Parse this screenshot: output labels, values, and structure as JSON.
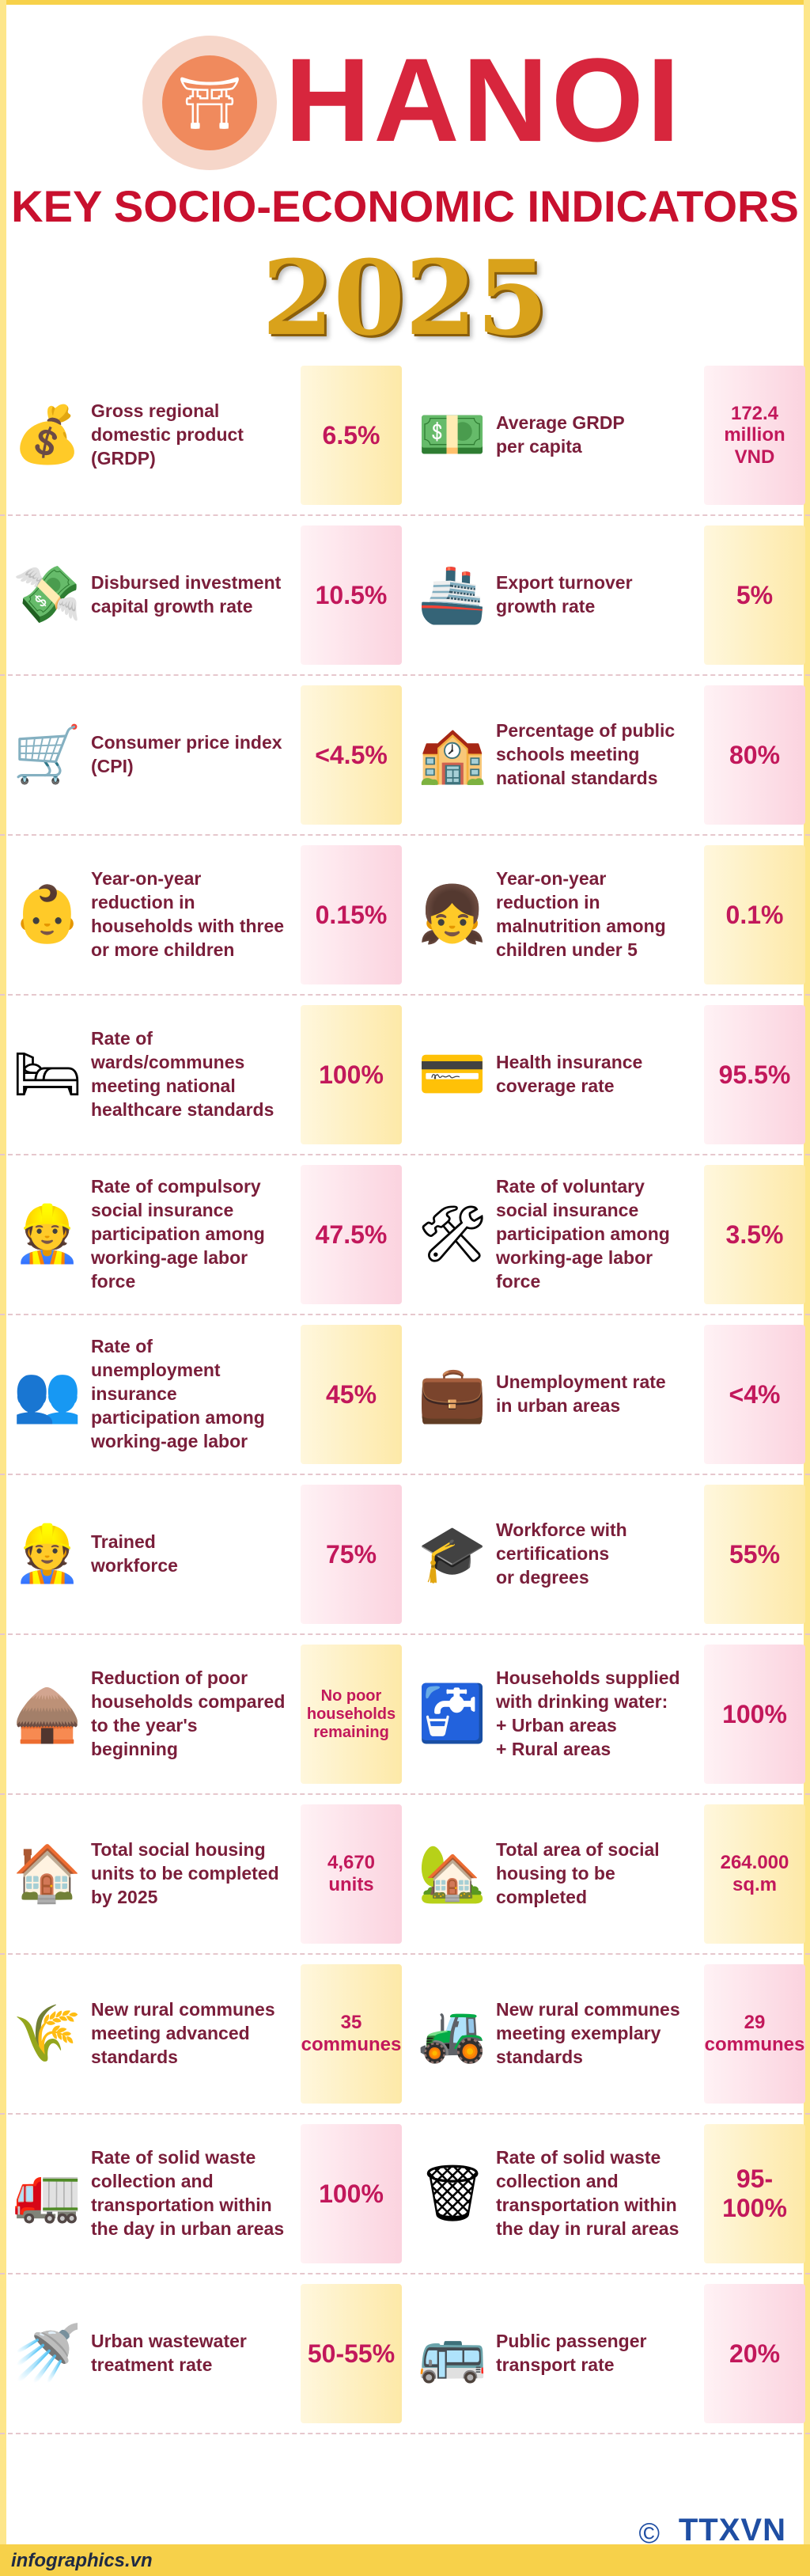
{
  "header": {
    "city": "HANOI",
    "subtitle": "KEY SOCIO-ECONOMIC INDICATORS",
    "year": "2025"
  },
  "rows": [
    {
      "left": {
        "label": "Gross regional\ndomestic product\n(GRDP)",
        "value": "6.5%",
        "icon": "coins-icon"
      },
      "right": {
        "label": "Average GRDP\nper capita",
        "value": "172.4\nmillion\nVND",
        "icon": "money-person-icon"
      }
    },
    {
      "left": {
        "label": "Disbursed investment\ncapital growth rate",
        "value": "10.5%",
        "icon": "cash-stack-icon"
      },
      "right": {
        "label": "Export turnover\ngrowth rate",
        "value": "5%",
        "icon": "container-port-icon"
      }
    },
    {
      "left": {
        "label": "Consumer price index\n(CPI)",
        "value": "<4.5%",
        "icon": "shopping-cart-icon"
      },
      "right": {
        "label": "Percentage of public\nschools meeting\nnational standards",
        "value": "80%",
        "icon": "school-icon"
      }
    },
    {
      "left": {
        "label": "Year-on-year\nreduction in\nhouseholds with three\nor more children",
        "value": "0.15%",
        "icon": "baby-icon"
      },
      "right": {
        "label": "Year-on-year\nreduction in\nmalnutrition among\nchildren under 5",
        "value": "0.1%",
        "icon": "child-icon"
      }
    },
    {
      "left": {
        "label": "Rate of\nwards/communes\nmeeting national\nhealthcare standards",
        "value": "100%",
        "icon": "hospital-bed-icon"
      },
      "right": {
        "label": "Health insurance\ncoverage rate",
        "value": "95.5%",
        "icon": "health-insurance-card-icon"
      }
    },
    {
      "left": {
        "label": "Rate of compulsory\nsocial insurance\nparticipation among\nworking-age labor\nforce",
        "value": "47.5%",
        "icon": "worker-icon"
      },
      "right": {
        "label": "Rate of voluntary\nsocial insurance\nparticipation among\nworking-age labor\nforce",
        "value": "3.5%",
        "icon": "wheelbarrow-worker-icon"
      }
    },
    {
      "left": {
        "label": "Rate of\nunemployment\ninsurance\nparticipation among\nworking-age labor",
        "value": "45%",
        "icon": "meeting-icon"
      },
      "right": {
        "label": "Unemployment rate\nin urban areas",
        "value": "<4%",
        "icon": "office-workers-icon"
      }
    },
    {
      "left": {
        "label": "Trained\nworkforce",
        "value": "75%",
        "icon": "engineer-icon"
      },
      "right": {
        "label": "Workforce with\ncertifications\nor degrees",
        "value": "55%",
        "icon": "graduate-worker-icon"
      }
    },
    {
      "left": {
        "label": "Reduction of poor\nhouseholds compared\nto the year's\nbeginning",
        "value": "No poor\nhouseholds\nremaining",
        "icon": "hut-icon"
      },
      "right": {
        "label": "Households supplied\nwith drinking water:\n+ Urban areas\n+ Rural areas",
        "value": "100%",
        "icon": "water-tap-icon"
      }
    },
    {
      "left": {
        "label": "Total social housing\nunits to be completed\nby 2025",
        "value": "4,670\nunits",
        "icon": "house-icon"
      },
      "right": {
        "label": "Total area of social\nhousing to be\ncompleted",
        "value": "264.000\nsq.m",
        "icon": "house-plot-icon"
      }
    },
    {
      "left": {
        "label": "New rural communes\nmeeting advanced\nstandards",
        "value": "35\ncommunes",
        "icon": "rural-landscape-icon"
      },
      "right": {
        "label": "New rural communes\nmeeting exemplary\nstandards",
        "value": "29\ncommunes",
        "icon": "farm-icon"
      }
    },
    {
      "left": {
        "label": "Rate of solid waste\ncollection and\ntransportation within\nthe day in urban areas",
        "value": "100%",
        "icon": "garbage-truck-icon"
      },
      "right": {
        "label": "Rate of solid waste\ncollection and\ntransportation within\nthe day in rural areas",
        "value": "95-100%",
        "icon": "waste-bags-icon"
      }
    },
    {
      "left": {
        "label": "Urban wastewater\ntreatment rate",
        "value": "50-55%",
        "icon": "wastewater-pipe-icon"
      },
      "right": {
        "label": "Public passenger\ntransport rate",
        "value": "20%",
        "icon": "bus-icon"
      }
    }
  ],
  "footer": {
    "credit": "infographics.vn",
    "agency": "TTXVN",
    "copyright": "©"
  }
}
